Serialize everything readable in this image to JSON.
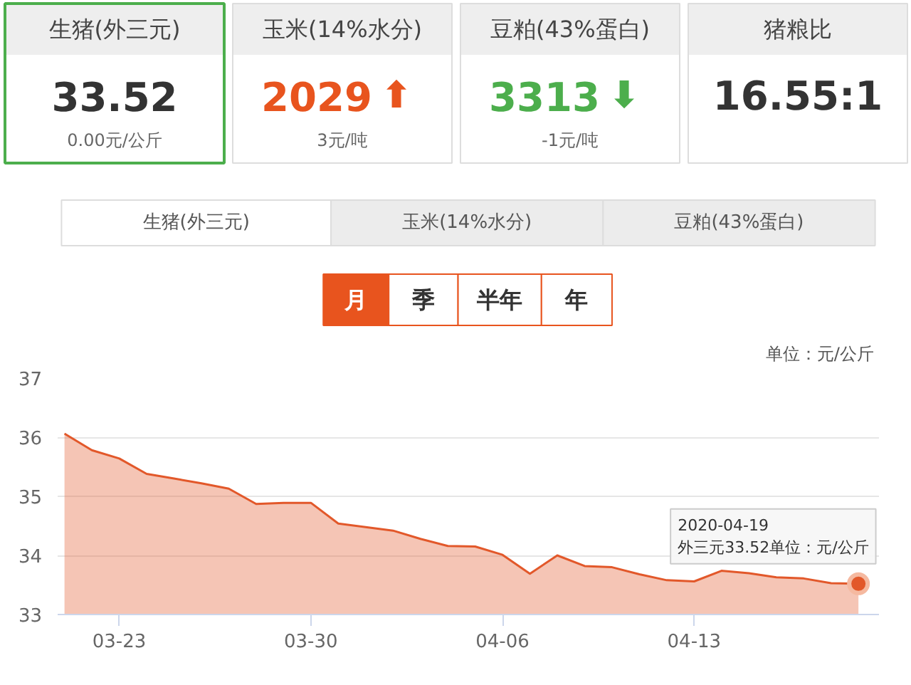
{
  "chart_data": [
    {
      "type": "other",
      "title": "生猪(外三元)",
      "annotations": [
        "33.52",
        "0.00元/公斤"
      ],
      "color": "#333333"
    },
    {
      "type": "other",
      "title": "玉米(14%水分)",
      "annotations": [
        "2029",
        "⬆",
        "3元/吨"
      ],
      "color": "#e8541e"
    },
    {
      "type": "other",
      "title": "豆粕(43%蛋白)",
      "annotations": [
        "3313",
        "⬇",
        "-1元/吨"
      ],
      "color": "#4cae4c"
    },
    {
      "type": "other",
      "title": "猪粮比",
      "annotations": [
        "16.55:1"
      ],
      "color": "#333333"
    },
    {
      "type": "area",
      "ylabel": "单位：元/公斤",
      "x": [
        "2020-03-21",
        "2020-03-22",
        "2020-03-23",
        "2020-03-24",
        "2020-03-25",
        "2020-03-26",
        "2020-03-27",
        "2020-03-28",
        "2020-03-29",
        "2020-03-30",
        "2020-03-31",
        "2020-04-01",
        "2020-04-02",
        "2020-04-03",
        "2020-04-04",
        "2020-04-05",
        "2020-04-06",
        "2020-04-07",
        "2020-04-08",
        "2020-04-09",
        "2020-04-10",
        "2020-04-11",
        "2020-04-12",
        "2020-04-13",
        "2020-04-14",
        "2020-04-15",
        "2020-04-16",
        "2020-04-17",
        "2020-04-18",
        "2020-04-19"
      ],
      "series": [
        {
          "color": "#e2582a",
          "values": [
            36.06,
            35.78,
            35.64,
            35.38,
            35.3,
            35.22,
            35.13,
            34.87,
            34.89,
            34.89,
            34.54,
            34.48,
            34.42,
            34.28,
            34.16,
            34.15,
            34.01,
            33.69,
            34.0,
            33.82,
            33.8,
            33.68,
            33.58,
            33.56,
            33.74,
            33.7,
            33.63,
            33.61,
            33.53,
            33.52
          ]
        }
      ],
      "xlim": [
        "2020-03-20T18:00",
        "2020-04-19T18:00"
      ],
      "xticks": [
        {
          "value": "2020-03-23",
          "label": "03-23"
        },
        {
          "value": "2020-03-30",
          "label": "03-30"
        },
        {
          "value": "2020-04-06",
          "label": "04-06"
        },
        {
          "value": "2020-04-13",
          "label": "04-13"
        }
      ],
      "ylim": [
        33,
        37
      ],
      "yticks": [
        33,
        34,
        35,
        36,
        37
      ],
      "grid": "y",
      "annotations": [
        "生猪(外三元)",
        "玉米(14%水分)",
        "豆粕(43%蛋白)",
        "月",
        "季",
        "半年",
        "年",
        {
          "text": "2020-04-19\n外三元33.52单位：元/公斤",
          "x": "2020-04-19",
          "y": 33.52
        }
      ]
    }
  ]
}
